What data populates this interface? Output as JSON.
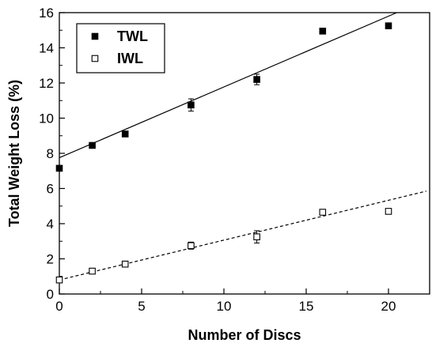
{
  "chart_data": {
    "type": "scatter",
    "xlabel": "Number of Discs",
    "ylabel": "Total Weight Loss (%)",
    "xlim": [
      0,
      22.5
    ],
    "ylim": [
      0,
      16
    ],
    "x_ticks": [
      0,
      5,
      10,
      15,
      20
    ],
    "y_ticks": [
      0,
      2,
      4,
      6,
      8,
      10,
      12,
      14,
      16
    ],
    "x_tick_labels": [
      "0",
      "5",
      "10",
      "15",
      "20"
    ],
    "y_tick_labels": [
      "0",
      "2",
      "4",
      "6",
      "8",
      "10",
      "12",
      "14",
      "16"
    ],
    "legend_position": "top-left",
    "grid": false,
    "series": [
      {
        "name": "TWL",
        "marker": "filled-square",
        "color": "#000000",
        "points": [
          {
            "x": 0,
            "y": 7.15,
            "err": 0.15
          },
          {
            "x": 2,
            "y": 8.45,
            "err": 0.15
          },
          {
            "x": 4,
            "y": 9.1,
            "err": 0.1
          },
          {
            "x": 8,
            "y": 10.75,
            "err": 0.35
          },
          {
            "x": 12,
            "y": 12.2,
            "err": 0.3
          },
          {
            "x": 16,
            "y": 14.95,
            "err": 0.1
          },
          {
            "x": 20,
            "y": 15.25,
            "err": 0.1
          }
        ],
        "fit": {
          "style": "solid",
          "x": [
            0,
            20.5
          ],
          "y": [
            7.75,
            16.0
          ]
        }
      },
      {
        "name": "IWL",
        "marker": "open-square",
        "color": "#000000",
        "points": [
          {
            "x": 0,
            "y": 0.8,
            "err": 0.05
          },
          {
            "x": 2,
            "y": 1.3,
            "err": 0.05
          },
          {
            "x": 4,
            "y": 1.7,
            "err": 0.1
          },
          {
            "x": 8,
            "y": 2.75,
            "err": 0.2
          },
          {
            "x": 12,
            "y": 3.25,
            "err": 0.35
          },
          {
            "x": 16,
            "y": 4.65,
            "err": 0.1
          },
          {
            "x": 20,
            "y": 4.7,
            "err": 0.05
          }
        ],
        "fit": {
          "style": "dashed",
          "x": [
            0,
            22.3
          ],
          "y": [
            0.8,
            5.85
          ]
        }
      }
    ]
  }
}
